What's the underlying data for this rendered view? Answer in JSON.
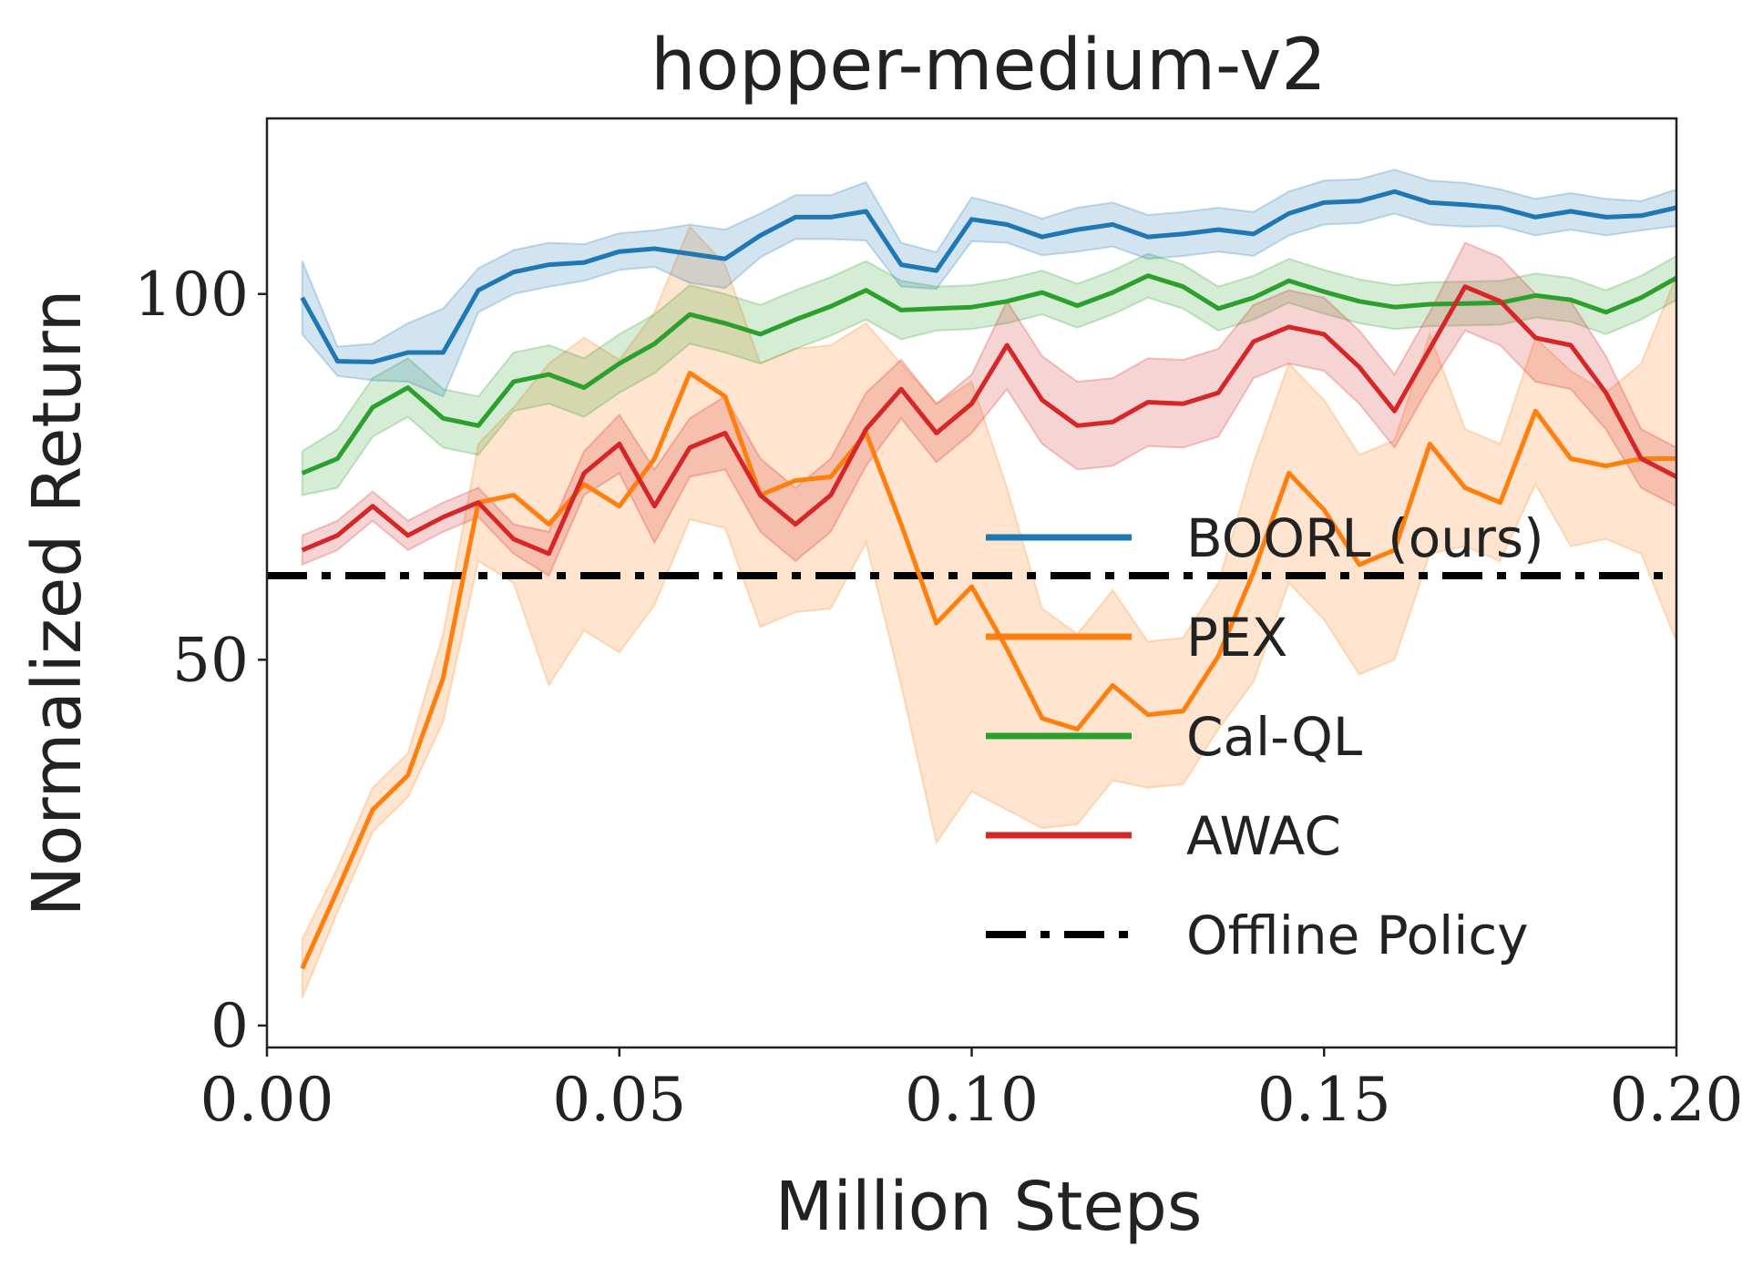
{
  "chart_data": {
    "type": "line",
    "title": "hopper-medium-v2",
    "xlabel": "Million Steps",
    "ylabel": "Normalized Return",
    "xlim": [
      0.0,
      0.2
    ],
    "ylim": [
      -3,
      124
    ],
    "xticks": [
      0.0,
      0.05,
      0.1,
      0.15,
      0.2
    ],
    "xtick_labels": [
      "0.00",
      "0.05",
      "0.10",
      "0.15",
      "0.20"
    ],
    "yticks": [
      0,
      50,
      100
    ],
    "ytick_labels": [
      "0",
      "50",
      "100"
    ],
    "grid": false,
    "legend_position": "lower-right",
    "x": [
      0.005,
      0.01,
      0.015,
      0.02,
      0.025,
      0.03,
      0.035,
      0.04,
      0.045,
      0.05,
      0.055,
      0.06,
      0.065,
      0.07,
      0.075,
      0.08,
      0.085,
      0.09,
      0.095,
      0.1,
      0.105,
      0.11,
      0.115,
      0.12,
      0.125,
      0.13,
      0.135,
      0.14,
      0.145,
      0.15,
      0.155,
      0.16,
      0.165,
      0.17,
      0.175,
      0.18,
      0.185,
      0.19,
      0.195,
      0.2
    ],
    "series": [
      {
        "name": "BOORL (ours)",
        "color": "#1f77b4",
        "style": "solid",
        "values": [
          99.5,
          90.8,
          90.7,
          92.0,
          92.0,
          100.5,
          103.0,
          104.0,
          104.3,
          105.8,
          106.2,
          105.5,
          104.8,
          108.0,
          110.5,
          110.5,
          111.3,
          104.0,
          103.2,
          110.2,
          109.5,
          107.8,
          108.8,
          109.5,
          107.8,
          108.2,
          108.8,
          108.2,
          111.0,
          112.5,
          112.7,
          114.0,
          112.5,
          112.2,
          111.8,
          110.5,
          111.3,
          110.5,
          110.7,
          111.8
        ],
        "band": [
          5,
          2,
          2.5,
          4,
          6,
          3,
          3,
          3,
          2.5,
          2.5,
          2.5,
          4,
          4,
          3,
          3,
          3,
          4,
          3,
          2.5,
          3,
          2.5,
          2.5,
          3,
          3,
          3,
          3,
          3,
          3,
          3,
          3,
          3,
          3,
          3,
          3,
          2.5,
          2.5,
          2.5,
          2.5,
          2,
          2.5
        ]
      },
      {
        "name": "PEX",
        "color": "#ff7f0e",
        "style": "solid",
        "values": [
          7.8,
          18.5,
          29.5,
          34.2,
          47.5,
          71.5,
          72.5,
          68.5,
          74.0,
          71.0,
          77.5,
          89.2,
          86.0,
          72.5,
          74.5,
          75.0,
          81.0,
          68.5,
          55.0,
          60.0,
          51.5,
          42.0,
          40.5,
          46.5,
          42.5,
          43.0,
          50.5,
          62.0,
          75.5,
          70.5,
          63.0,
          65.0,
          79.5,
          73.5,
          71.5,
          84.0,
          77.5,
          76.5,
          77.5,
          77.5
        ],
        "band": [
          4,
          3,
          3,
          3,
          6,
          8,
          12,
          22,
          20,
          20,
          20,
          20,
          18,
          18,
          18,
          18,
          15,
          22,
          30,
          28,
          22,
          15,
          13,
          13,
          10,
          10,
          10,
          15,
          15,
          15,
          15,
          15,
          15,
          8,
          8,
          10,
          12,
          10,
          13,
          25
        ]
      },
      {
        "name": "Cal-QL",
        "color": "#2ca02c",
        "style": "solid",
        "values": [
          75.5,
          77.5,
          84.5,
          87.2,
          83.0,
          82.0,
          88.0,
          89.0,
          87.2,
          90.5,
          93.2,
          97.2,
          96.0,
          94.5,
          96.5,
          98.3,
          100.5,
          97.8,
          98.0,
          98.2,
          99.0,
          100.2,
          98.4,
          100.2,
          102.5,
          101.0,
          98.0,
          99.5,
          101.8,
          100.3,
          99.0,
          98.2,
          98.6,
          98.7,
          98.8,
          99.8,
          99.2,
          97.5,
          99.5,
          102.2
        ],
        "band": [
          3,
          4,
          4,
          4,
          4,
          4,
          4,
          4,
          4,
          4,
          4,
          4,
          4,
          4,
          4,
          4,
          4,
          4,
          3,
          3,
          3,
          3,
          3,
          3,
          3,
          3,
          3,
          3,
          3,
          3,
          3,
          3,
          3,
          3,
          3,
          3,
          3,
          3,
          3,
          3
        ]
      },
      {
        "name": "AWAC",
        "color": "#d62728",
        "style": "solid",
        "values": [
          65.0,
          67.0,
          71.0,
          67.0,
          69.5,
          71.5,
          66.5,
          64.5,
          75.5,
          79.5,
          71.0,
          79.0,
          81.0,
          72.5,
          68.5,
          72.5,
          81.5,
          87.0,
          81.0,
          85.0,
          93.0,
          85.5,
          82.0,
          82.5,
          85.2,
          85.0,
          86.5,
          93.5,
          95.5,
          94.5,
          90.0,
          84.0,
          92.5,
          101.0,
          99.0,
          94.0,
          93.0,
          86.5,
          77.5,
          75.0
        ],
        "band": [
          2,
          2,
          2,
          2,
          2,
          2,
          2,
          3,
          3,
          4,
          5,
          4,
          5,
          5,
          5,
          5,
          5,
          4,
          4,
          4,
          6,
          6,
          6,
          6,
          6,
          6,
          6,
          5,
          5,
          5,
          5,
          5,
          5,
          6,
          6,
          6,
          6,
          5,
          4,
          4
        ]
      },
      {
        "name": "Offline Policy",
        "color": "#000000",
        "style": "dashdot",
        "constant": 61.5
      }
    ]
  }
}
